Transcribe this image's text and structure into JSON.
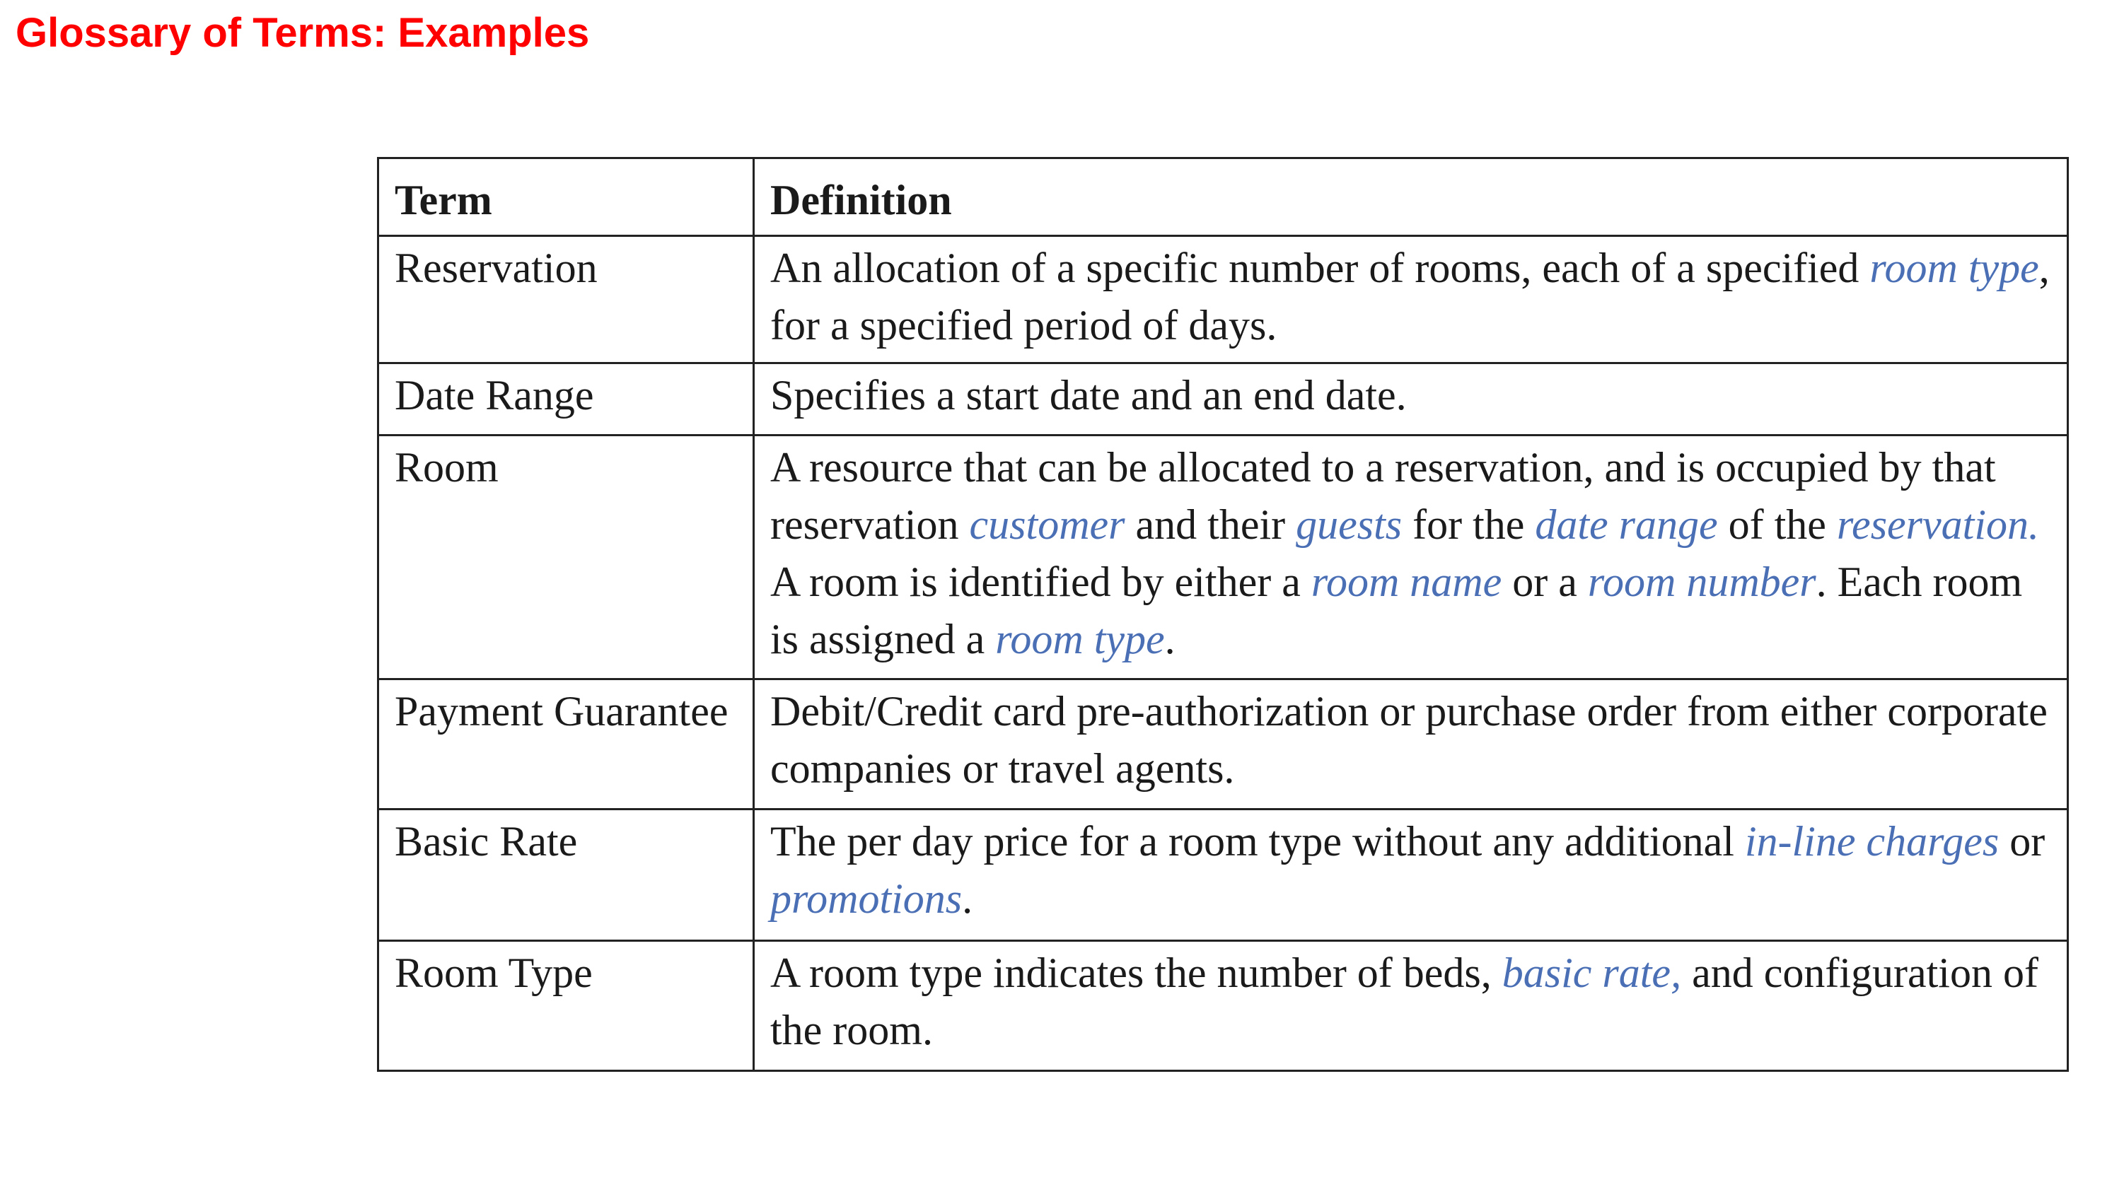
{
  "title": "Glossary of Terms: Examples",
  "colors": {
    "title": "#ff0000",
    "link_term": "#4a6fb5",
    "text": "#1a1a1a",
    "border": "#222222"
  },
  "table": {
    "headers": {
      "term": "Term",
      "definition": "Definition"
    },
    "rows": [
      {
        "term": "Reservation",
        "definition": [
          {
            "text": "An allocation of a specific number of rooms, each of a specified "
          },
          {
            "text": "room type",
            "link": true
          },
          {
            "text": ", for a specified period of days."
          }
        ]
      },
      {
        "term": "Date Range",
        "definition": [
          {
            "text": "Specifies a start date and an end date."
          }
        ]
      },
      {
        "term": "Room",
        "definition": [
          {
            "text": "A resource that can be allocated to a reservation, and is occupied by that reservation "
          },
          {
            "text": "customer",
            "link": true
          },
          {
            "text": " and their "
          },
          {
            "text": "guests",
            "link": true
          },
          {
            "text": " for the "
          },
          {
            "text": "date range",
            "link": true
          },
          {
            "text": " of the "
          },
          {
            "text": "reservation.",
            "link": true
          },
          {
            "text": " A room is identified by either a "
          },
          {
            "text": "room name",
            "link": true
          },
          {
            "text": " or a "
          },
          {
            "text": "room number",
            "link": true
          },
          {
            "text": ". Each room is assigned a "
          },
          {
            "text": "room type",
            "link": true
          },
          {
            "text": "."
          }
        ]
      },
      {
        "term": "Payment Guarantee",
        "definition": [
          {
            "text": "Debit/Credit card pre-authorization or purchase order from either corporate companies or travel agents."
          }
        ]
      },
      {
        "term": "Basic Rate",
        "definition": [
          {
            "text": "The per day price for a room type without any additional "
          },
          {
            "text": "in-line charges",
            "link": true
          },
          {
            "text": " or "
          },
          {
            "text": "promotions",
            "link": true
          },
          {
            "text": "."
          }
        ]
      },
      {
        "term": "Room Type",
        "definition": [
          {
            "text": "A room type indicates the number of beds, "
          },
          {
            "text": "basic rate,",
            "link": true
          },
          {
            "text": " and configuration of the room."
          }
        ]
      }
    ]
  }
}
